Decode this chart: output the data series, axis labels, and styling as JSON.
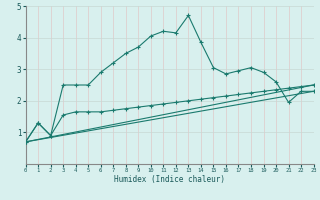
{
  "xlabel": "Humidex (Indice chaleur)",
  "background_color": "#d8f0ee",
  "grid_color_h": "#c8d8d4",
  "grid_color_v": "#e0c8c8",
  "line_color": "#1a7a6e",
  "xlim": [
    0,
    23
  ],
  "ylim": [
    0,
    5
  ],
  "xticks": [
    0,
    1,
    2,
    3,
    4,
    5,
    6,
    7,
    8,
    9,
    10,
    11,
    12,
    13,
    14,
    15,
    16,
    17,
    18,
    19,
    20,
    21,
    22,
    23
  ],
  "yticks": [
    1,
    2,
    3,
    4,
    5
  ],
  "curve1_x": [
    0,
    1,
    2,
    3,
    4,
    5,
    6,
    7,
    8,
    9,
    10,
    11,
    12,
    13,
    14,
    15,
    16,
    17,
    18,
    19,
    20,
    21,
    22,
    23
  ],
  "curve1_y": [
    0.7,
    1.3,
    0.9,
    2.5,
    2.5,
    2.5,
    2.9,
    3.2,
    3.5,
    3.7,
    4.05,
    4.2,
    4.15,
    4.7,
    3.85,
    3.05,
    2.85,
    2.95,
    3.05,
    2.9,
    2.6,
    1.95,
    2.3,
    2.3
  ],
  "curve2_x": [
    0,
    1,
    2,
    3,
    4,
    5,
    6,
    7,
    8,
    9,
    10,
    11,
    12,
    13,
    14,
    15,
    16,
    17,
    18,
    19,
    20,
    21,
    22,
    23
  ],
  "curve2_y": [
    0.7,
    1.3,
    0.9,
    1.55,
    1.65,
    1.65,
    1.65,
    1.7,
    1.75,
    1.8,
    1.85,
    1.9,
    1.95,
    2.0,
    2.05,
    2.1,
    2.15,
    2.2,
    2.25,
    2.3,
    2.35,
    2.4,
    2.45,
    2.5
  ],
  "curve3_x": [
    0,
    23
  ],
  "curve3_y": [
    0.7,
    2.5
  ],
  "curve4_x": [
    0,
    23
  ],
  "curve4_y": [
    0.7,
    2.3
  ]
}
